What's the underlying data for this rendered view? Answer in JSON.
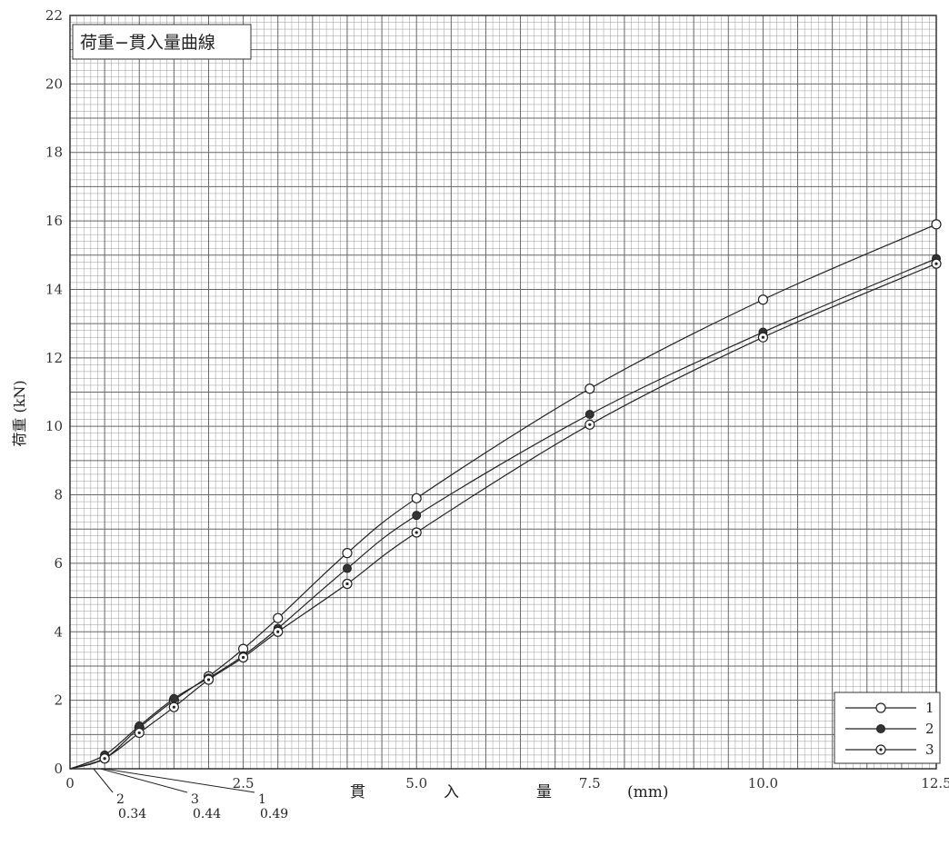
{
  "chart_data": {
    "type": "line",
    "title": "荷重−貫入量曲線",
    "xlabel": [
      "貫",
      "入",
      "量"
    ],
    "xunit": "(mm)",
    "ylabel": "荷重 (kN)",
    "xlim": [
      0,
      12.5
    ],
    "ylim": [
      0,
      22
    ],
    "x_ticks": [
      "0",
      "2.5",
      "5.0",
      "7.5",
      "10.0",
      "12.5"
    ],
    "x_tick_values": [
      0,
      2.5,
      5.0,
      7.5,
      10.0,
      12.5
    ],
    "y_ticks": [
      "0",
      "2",
      "4",
      "6",
      "8",
      "10",
      "12",
      "14",
      "16",
      "18",
      "20",
      "22"
    ],
    "y_tick_values": [
      0,
      2,
      4,
      6,
      8,
      10,
      12,
      14,
      16,
      18,
      20,
      22
    ],
    "grid": true,
    "legend_position": "bottom-right",
    "series": [
      {
        "name": "1",
        "marker": "open-circle",
        "x": [
          0.5,
          1.0,
          1.5,
          2.0,
          2.5,
          3.0,
          4.0,
          5.0,
          7.5,
          10.0,
          12.5
        ],
        "y": [
          0.3,
          1.2,
          2.0,
          2.7,
          3.5,
          4.4,
          6.3,
          7.9,
          11.1,
          13.7,
          15.9
        ],
        "zero_offset": 0.49,
        "offset_label": "0.49",
        "offset_index": "1"
      },
      {
        "name": "2",
        "marker": "filled-circle",
        "x": [
          0.5,
          1.0,
          1.5,
          2.0,
          2.5,
          3.0,
          4.0,
          5.0,
          7.5,
          10.0,
          12.5
        ],
        "y": [
          0.4,
          1.25,
          2.05,
          2.65,
          3.3,
          4.1,
          5.85,
          7.4,
          10.35,
          12.75,
          14.9
        ],
        "zero_offset": 0.34,
        "offset_label": "0.34",
        "offset_index": "2"
      },
      {
        "name": "3",
        "marker": "dotted-circle",
        "x": [
          0.5,
          1.0,
          1.5,
          2.0,
          2.5,
          3.0,
          4.0,
          5.0,
          7.5,
          10.0,
          12.5
        ],
        "y": [
          0.3,
          1.05,
          1.8,
          2.6,
          3.25,
          4.0,
          5.4,
          6.9,
          10.05,
          12.6,
          14.75
        ],
        "zero_offset": 0.44,
        "offset_label": "0.44",
        "offset_index": "3"
      }
    ]
  }
}
